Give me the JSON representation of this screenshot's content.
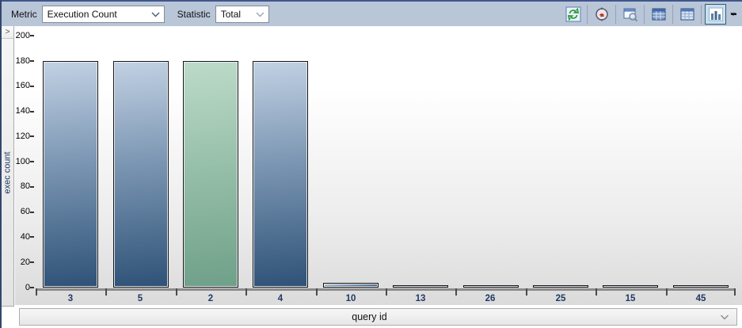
{
  "toolbar": {
    "metric_label": "Metric",
    "metric_value": "Execution Count",
    "statistic_label": "Statistic",
    "statistic_value": "Total",
    "buttons": [
      {
        "name": "refresh-button",
        "icon": "refresh-icon",
        "active": false
      },
      {
        "name": "track-query-button",
        "icon": "track-query-icon",
        "active": false
      },
      {
        "name": "view-query-text-button",
        "icon": "window-magnifier-icon",
        "active": false
      },
      {
        "name": "grid-detail-view-button",
        "icon": "grid-detail-icon",
        "active": false
      },
      {
        "name": "grid-view-button",
        "icon": "grid-icon",
        "active": false
      },
      {
        "name": "chart-view-button",
        "icon": "bar-chart-icon",
        "active": true
      }
    ]
  },
  "left_panel": {
    "collapse_chevron": ">"
  },
  "chart_data": {
    "type": "bar",
    "title": "",
    "xlabel": "query id",
    "ylabel": "exec count",
    "categories": [
      "3",
      "5",
      "2",
      "4",
      "10",
      "13",
      "26",
      "25",
      "15",
      "45"
    ],
    "values": [
      180,
      180,
      180,
      180,
      4,
      2,
      2,
      2,
      2,
      2
    ],
    "highlighted_index": 2,
    "ylim": [
      0,
      200
    ],
    "ytick_step": 20,
    "grid": false,
    "bar_color_normal": "#2e5277",
    "bar_color_highlight": "#6fa089"
  },
  "bottom_bar": {
    "label": "query id"
  },
  "colors": {
    "toolbar_bg": "#b9c6d8",
    "toolbar_topline": "#41568c",
    "plot_bg_top": "#ffffff",
    "plot_bg_bottom": "#dbdbdb",
    "active_button_bg": "#c4e0f3"
  }
}
